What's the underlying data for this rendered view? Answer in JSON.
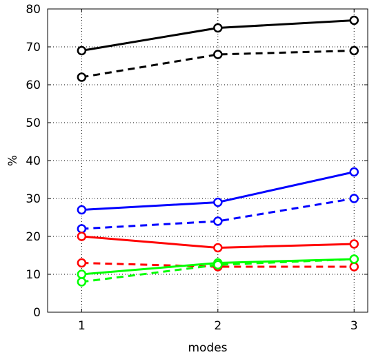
{
  "chart_data": {
    "type": "line",
    "xlabel": "modes",
    "ylabel": "%",
    "x": [
      1,
      2,
      3
    ],
    "xlim": [
      0.75,
      3.1
    ],
    "ylim": [
      0,
      80
    ],
    "xticks": [
      "1",
      "2",
      "3"
    ],
    "yticks": [
      "0",
      "10",
      "20",
      "30",
      "40",
      "50",
      "60",
      "70",
      "80"
    ],
    "grid": true,
    "legend": "none",
    "series": [
      {
        "color": "#000000",
        "style": "solid",
        "values": [
          69,
          75,
          77
        ]
      },
      {
        "color": "#000000",
        "style": "dashed",
        "values": [
          62,
          68,
          69
        ]
      },
      {
        "color": "#0000ff",
        "style": "solid",
        "values": [
          27,
          29,
          37
        ]
      },
      {
        "color": "#0000ff",
        "style": "dashed",
        "values": [
          22,
          24,
          30
        ]
      },
      {
        "color": "#ff0000",
        "style": "solid",
        "values": [
          20,
          17,
          18
        ]
      },
      {
        "color": "#ff0000",
        "style": "dashed",
        "values": [
          13,
          12,
          12
        ]
      },
      {
        "color": "#00ff00",
        "style": "solid",
        "values": [
          10,
          13,
          14
        ]
      },
      {
        "color": "#00ff00",
        "style": "dashed",
        "values": [
          8,
          12.5,
          14
        ]
      }
    ]
  }
}
